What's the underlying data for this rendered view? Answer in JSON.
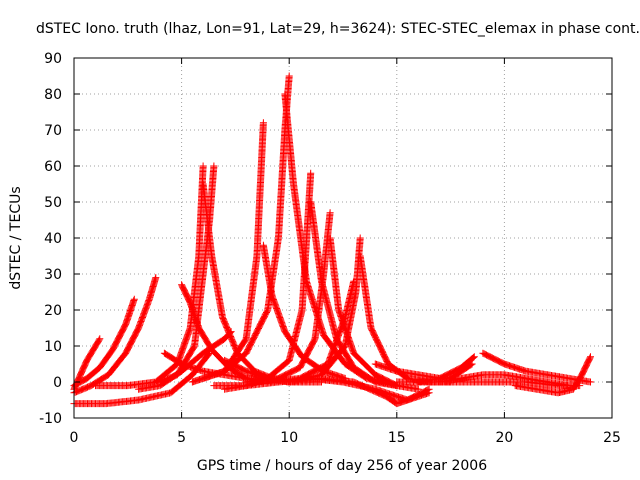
{
  "chart_data": {
    "type": "scatter",
    "title": "dSTEC Iono. truth (lhaz, Lon=91, Lat=29, h=3624): STEC-STEC_elemax in phase cont.",
    "xlabel": "GPS time / hours of day 256 of year 2006",
    "ylabel": "dSTEC  / TECUs",
    "xlim": [
      0,
      25
    ],
    "ylim": [
      -10,
      90
    ],
    "xticks": [
      0,
      5,
      10,
      15,
      20,
      25
    ],
    "yticks": [
      -10,
      0,
      10,
      20,
      30,
      40,
      50,
      60,
      70,
      80,
      90
    ],
    "grid": true,
    "marker": "+",
    "color": "#ff0000",
    "series": [
      {
        "x": [
          0.0,
          0.3,
          0.6,
          0.9,
          1.2
        ],
        "y": [
          -2,
          2,
          6,
          9,
          12
        ]
      },
      {
        "x": [
          0.0,
          0.6,
          1.2,
          1.8,
          2.4,
          2.8
        ],
        "y": [
          -1,
          1,
          4,
          9,
          16,
          23
        ]
      },
      {
        "x": [
          0.0,
          0.8,
          1.6,
          2.4,
          3.0,
          3.5,
          3.8
        ],
        "y": [
          -3,
          -1,
          2,
          8,
          15,
          23,
          29
        ]
      },
      {
        "x": [
          0.0,
          1.5,
          3.0,
          4.5,
          5.5,
          6.3
        ],
        "y": [
          -6,
          -6,
          -5,
          -3,
          2,
          8
        ]
      },
      {
        "x": [
          1.0,
          2.5,
          3.8,
          4.8,
          5.4,
          5.8,
          6.0
        ],
        "y": [
          -1,
          -1,
          0,
          5,
          15,
          35,
          60
        ]
      },
      {
        "x": [
          4.0,
          4.8,
          5.6,
          6.0,
          6.3,
          6.5
        ],
        "y": [
          0,
          2,
          10,
          30,
          45,
          60
        ]
      },
      {
        "x": [
          6.0,
          6.4,
          6.9,
          7.6,
          8.4,
          9.2,
          10.0
        ],
        "y": [
          55,
          35,
          18,
          8,
          3,
          1,
          0
        ]
      },
      {
        "x": [
          5.0,
          5.4,
          5.8,
          6.4,
          7.2,
          8.0,
          8.8
        ],
        "y": [
          27,
          22,
          15,
          9,
          4,
          1,
          0
        ]
      },
      {
        "x": [
          5.5,
          6.0,
          7.0,
          8.0,
          8.5,
          8.8
        ],
        "y": [
          0,
          1,
          3,
          12,
          35,
          72
        ]
      },
      {
        "x": [
          8.8,
          9.2,
          9.8,
          10.6,
          11.6,
          12.6
        ],
        "y": [
          38,
          24,
          14,
          7,
          3,
          1
        ]
      },
      {
        "x": [
          6.0,
          7.0,
          8.0,
          9.0,
          9.5,
          9.8,
          10.0
        ],
        "y": [
          1,
          3,
          8,
          20,
          40,
          70,
          85
        ]
      },
      {
        "x": [
          9.8,
          10.2,
          10.8,
          11.6,
          12.6,
          13.6,
          15.0
        ],
        "y": [
          80,
          55,
          28,
          13,
          5,
          1,
          -1
        ]
      },
      {
        "x": [
          7.0,
          8.0,
          9.0,
          10.0,
          10.6,
          11.0
        ],
        "y": [
          -2,
          -1,
          1,
          6,
          20,
          58
        ]
      },
      {
        "x": [
          11.0,
          11.5,
          12.2,
          13.0,
          14.0,
          15.0
        ],
        "y": [
          50,
          28,
          12,
          4,
          0,
          -1
        ]
      },
      {
        "x": [
          8.0,
          9.5,
          10.5,
          11.2,
          11.6,
          11.9
        ],
        "y": [
          0,
          1,
          4,
          12,
          30,
          47
        ]
      },
      {
        "x": [
          11.9,
          12.3,
          13.0,
          14.0,
          15.0,
          16.0
        ],
        "y": [
          40,
          20,
          8,
          2,
          -1,
          -2
        ]
      },
      {
        "x": [
          9.0,
          10.5,
          11.8,
          12.6,
          13.0
        ],
        "y": [
          0,
          1,
          5,
          18,
          28
        ]
      },
      {
        "x": [
          10.0,
          11.5,
          12.6,
          13.1,
          13.3
        ],
        "y": [
          0,
          2,
          10,
          25,
          40
        ]
      },
      {
        "x": [
          13.3,
          13.8,
          14.6,
          15.5,
          16.5,
          17.5
        ],
        "y": [
          35,
          15,
          5,
          1,
          0,
          0
        ]
      },
      {
        "x": [
          3.0,
          4.0,
          5.0,
          6.0,
          7.0,
          7.3
        ],
        "y": [
          -2,
          -1,
          3,
          8,
          12,
          14
        ]
      },
      {
        "x": [
          7.0,
          8.0,
          9.0,
          10.0,
          11.0,
          11.5
        ],
        "y": [
          6,
          3,
          1,
          0,
          0,
          0
        ]
      },
      {
        "x": [
          4.2,
          5.0,
          6.0,
          7.0,
          8.0,
          9.0,
          10.0
        ],
        "y": [
          8,
          5,
          3,
          2,
          1,
          1,
          0
        ]
      },
      {
        "x": [
          6.5,
          8.0,
          9.5,
          11.0,
          12.5,
          14.0,
          15.5,
          16.5
        ],
        "y": [
          -1,
          -1,
          0,
          1,
          0,
          -2,
          -5,
          -3
        ]
      },
      {
        "x": [
          10.0,
          11.5,
          13.0,
          14.5,
          15.0,
          15.5,
          16.5
        ],
        "y": [
          0,
          1,
          0,
          -4,
          -6,
          -5,
          -2
        ]
      },
      {
        "x": [
          14.0,
          15.0,
          16.0,
          17.0,
          17.5,
          18.5
        ],
        "y": [
          5,
          3,
          2,
          1,
          1,
          5
        ]
      },
      {
        "x": [
          16.0,
          17.0,
          18.0,
          18.6
        ],
        "y": [
          0,
          1,
          4,
          7
        ]
      },
      {
        "x": [
          17.0,
          18.0,
          19.0,
          20.0,
          21.0,
          22.0,
          23.0
        ],
        "y": [
          0,
          1,
          2,
          2,
          1,
          0,
          -1
        ]
      },
      {
        "x": [
          19.0,
          20.0,
          21.0,
          22.0,
          23.0,
          24.0
        ],
        "y": [
          8,
          5,
          3,
          2,
          1,
          0
        ]
      },
      {
        "x": [
          20.5,
          21.5,
          22.5,
          23.2,
          23.6,
          24.0
        ],
        "y": [
          -1,
          -2,
          -3,
          -2,
          2,
          7
        ]
      },
      {
        "x": [
          15.0,
          17.0,
          19.0,
          21.0,
          22.5,
          23.5
        ],
        "y": [
          0,
          0,
          0,
          0,
          -1,
          -1
        ]
      }
    ]
  }
}
